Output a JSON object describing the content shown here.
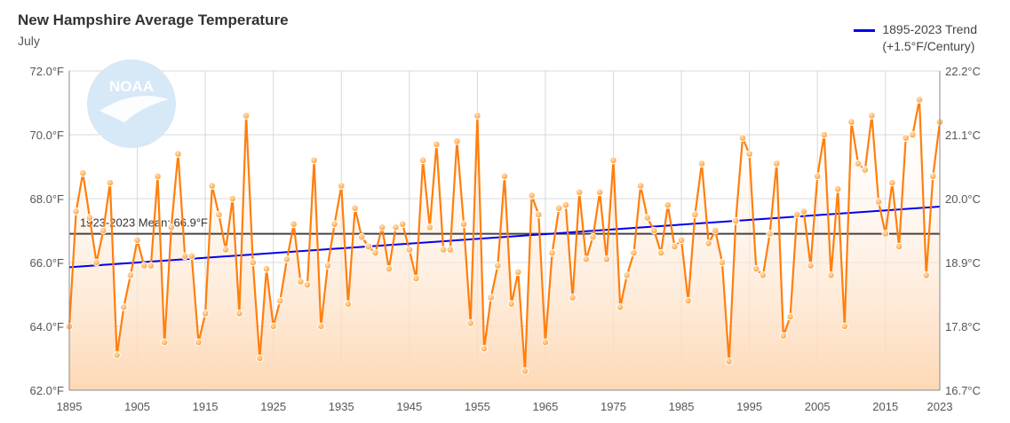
{
  "chart_data": {
    "type": "line",
    "title": "New Hampshire Average Temperature",
    "subtitle": "July",
    "xlabel": "",
    "ylabel": "",
    "xlim": [
      1895,
      2023
    ],
    "ylim": [
      62,
      72
    ],
    "x_ticks": [
      "1895",
      "1905",
      "1915",
      "1925",
      "1935",
      "1945",
      "1955",
      "1965",
      "1975",
      "1985",
      "1995",
      "2005",
      "2015",
      "2023"
    ],
    "y_ticks_left": [
      "62.0°F",
      "64.0°F",
      "66.0°F",
      "68.0°F",
      "70.0°F",
      "72.0°F"
    ],
    "y_ticks_right": [
      "16.7°C",
      "17.8°C",
      "18.9°C",
      "20.0°C",
      "21.1°C",
      "22.2°C"
    ],
    "grid": true,
    "legend": {
      "position": "top-right",
      "entries": [
        "1895-2023 Trend",
        "(+1.5°F/Century)"
      ]
    },
    "mean": {
      "label": "1923-2023 Mean: 66.9°F",
      "value": 66.9
    },
    "trend": {
      "start": 65.85,
      "end": 67.75,
      "color": "#0000ee"
    },
    "series": [
      {
        "name": "July Average Temperature",
        "color": "#ff7f0e",
        "x_start": 1895,
        "values": [
          64.0,
          67.6,
          68.8,
          67.4,
          66.0,
          67.0,
          68.5,
          63.1,
          64.6,
          65.6,
          66.7,
          65.9,
          65.9,
          68.7,
          63.5,
          67.1,
          69.4,
          66.2,
          66.2,
          63.5,
          64.4,
          68.4,
          67.5,
          66.4,
          68.0,
          64.4,
          70.6,
          66.0,
          63.0,
          65.8,
          64.0,
          64.8,
          66.1,
          67.2,
          65.4,
          65.3,
          69.2,
          64.0,
          65.9,
          67.2,
          68.4,
          64.7,
          67.7,
          66.8,
          66.5,
          66.3,
          67.1,
          65.8,
          67.1,
          67.2,
          66.4,
          65.5,
          69.2,
          67.1,
          69.7,
          66.4,
          66.4,
          69.8,
          67.2,
          64.1,
          70.6,
          63.3,
          64.9,
          65.9,
          68.7,
          64.7,
          65.7,
          62.6,
          68.1,
          67.5,
          63.5,
          66.3,
          67.7,
          67.8,
          64.9,
          68.2,
          66.1,
          66.8,
          68.2,
          66.1,
          69.2,
          64.6,
          65.6,
          66.3,
          68.4,
          67.4,
          67.0,
          66.3,
          67.8,
          66.5,
          66.7,
          64.8,
          67.5,
          69.1,
          66.6,
          67.0,
          66.0,
          62.9,
          67.3,
          69.9,
          69.4,
          65.8,
          65.6,
          66.9,
          69.1,
          63.7,
          64.3,
          67.5,
          67.6,
          65.9,
          68.7,
          70.0,
          65.6,
          68.3,
          64.0,
          70.4,
          69.1,
          68.9,
          70.6,
          67.9,
          66.9,
          68.5,
          66.5,
          69.9,
          70.0,
          71.1,
          65.6,
          68.7,
          70.4
        ]
      }
    ],
    "logo_text": "NOAA"
  }
}
